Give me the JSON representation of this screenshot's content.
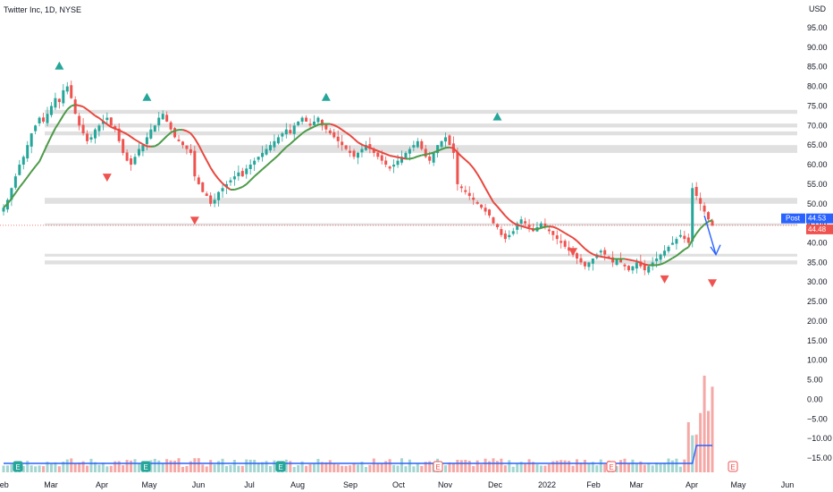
{
  "title": "Twitter Inc, 1D, NYSE",
  "currency": "USD",
  "colors": {
    "up": "#26a69a",
    "down": "#ef5350",
    "ma_red": "#e8473f",
    "ma_green": "#4c9a48",
    "volume_ma": "#2962ff",
    "zone": "#e0e0e0",
    "arrow": "#2962ff",
    "post_tag": "#2962ff",
    "price_tag": "#ef5350",
    "volume_up": "#f5a8a6",
    "volume_down": "#a4d5d0"
  },
  "chart_data": {
    "type": "candlestick",
    "y_ticks": [
      "95.00",
      "90.00",
      "85.00",
      "80.00",
      "75.00",
      "70.00",
      "65.00",
      "60.00",
      "55.00",
      "50.00",
      "45.00",
      "40.00",
      "35.00",
      "30.00",
      "25.00",
      "20.00",
      "15.00",
      "10.00",
      "5.00",
      "0.00",
      "−5.00",
      "−10.00",
      "−15.00"
    ],
    "y_tick_values": [
      95,
      90,
      85,
      80,
      75,
      70,
      65,
      60,
      55,
      50,
      45,
      40,
      35,
      30,
      25,
      20,
      15,
      10,
      5,
      0,
      -5,
      -10,
      -15
    ],
    "x_ticks": [
      "Feb",
      "Mar",
      "Apr",
      "May",
      "Jun",
      "Jul",
      "Aug",
      "Sep",
      "Oct",
      "Nov",
      "Dec",
      "2022",
      "Feb",
      "Mar",
      "Apr",
      "May",
      "Jun"
    ],
    "ylim": [
      -19,
      97
    ],
    "post_label": "Post",
    "post_price": "44.53",
    "last_price": "44.48",
    "earnings_label": "E",
    "closes": [
      49,
      51,
      54,
      57,
      60,
      62,
      65,
      68,
      70,
      72,
      71,
      73,
      75,
      77,
      76,
      79,
      80,
      77,
      73,
      70,
      68,
      66,
      67,
      69,
      70,
      71,
      72,
      70,
      69,
      66,
      63,
      61,
      60,
      62,
      64,
      65,
      67,
      69,
      70,
      72,
      73,
      71,
      69,
      67,
      66,
      65,
      64,
      63,
      57,
      55,
      53,
      52,
      50,
      51,
      53,
      54,
      55,
      56,
      57,
      58,
      57,
      59,
      60,
      61,
      62,
      63,
      64,
      65,
      66,
      67,
      68,
      69,
      68,
      70,
      71,
      72,
      71,
      70,
      71,
      72,
      70,
      69,
      68,
      67,
      66,
      65,
      64,
      63,
      62,
      63,
      64,
      65,
      64,
      63,
      62,
      61,
      60,
      59,
      60,
      61,
      62,
      63,
      64,
      65,
      66,
      64,
      62,
      61,
      63,
      65,
      66,
      67,
      65,
      63,
      55,
      54,
      53,
      52,
      51,
      50,
      49,
      48,
      47,
      45,
      44,
      42,
      41,
      42,
      43,
      45,
      46,
      45,
      44,
      43,
      44,
      45,
      44,
      43,
      42,
      41,
      40,
      39,
      38,
      37,
      36,
      35,
      34,
      35,
      36,
      37,
      38,
      37,
      36,
      35,
      36,
      35,
      34,
      33,
      34,
      35,
      34,
      33,
      34,
      35,
      36,
      37,
      38,
      39,
      40,
      41,
      42,
      41,
      40,
      54,
      52,
      50,
      48,
      46,
      44.48
    ],
    "triangles_up": [
      {
        "x_index": 14,
        "price": 85
      },
      {
        "x_index": 36,
        "price": 77
      },
      {
        "x_index": 81,
        "price": 77
      },
      {
        "x_index": 124,
        "price": 72
      }
    ],
    "triangles_down": [
      {
        "x_index": 26,
        "price": 57
      },
      {
        "x_index": 48,
        "price": 46
      },
      {
        "x_index": 143,
        "price": 38
      },
      {
        "x_index": 166,
        "price": 31
      },
      {
        "x_index": 180,
        "price": 30
      }
    ],
    "zones": [
      [
        73,
        74
      ],
      [
        69.5,
        70.5
      ],
      [
        67.5,
        68.5
      ],
      [
        63,
        65
      ],
      [
        50,
        51.5
      ],
      [
        44.4,
        45
      ],
      [
        36.5,
        37.2
      ],
      [
        34.5,
        35.5
      ]
    ],
    "earnings_markers": [
      "E",
      "E",
      "E",
      "E",
      "E",
      "E",
      "E"
    ]
  }
}
